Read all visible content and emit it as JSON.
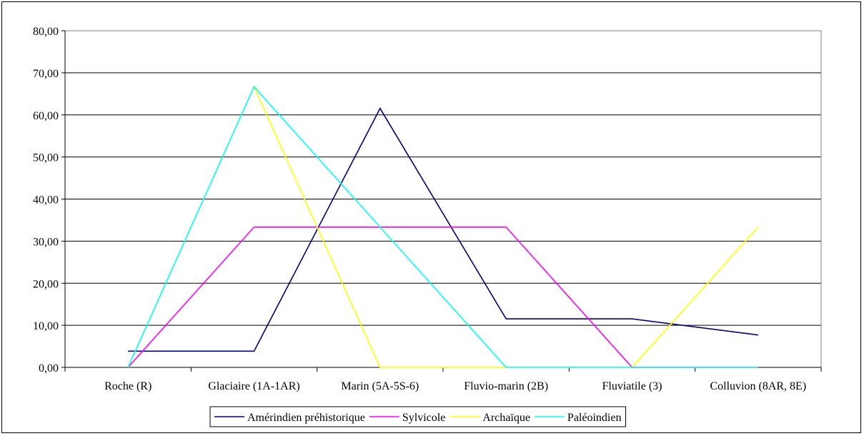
{
  "chart_data": {
    "type": "line",
    "title": "",
    "xlabel": "",
    "ylabel": "",
    "categories": [
      "Roche (R)",
      "Glaciaire (1A-1AR)",
      "Marin (5A-5S-6)",
      "Fluvio-marin (2B)",
      "Fluviatile (3)",
      "Colluvion (8AR, 8E)"
    ],
    "ylim": [
      0,
      80
    ],
    "yticks": [
      "0,00",
      "10,00",
      "20,00",
      "30,00",
      "40,00",
      "50,00",
      "60,00",
      "70,00",
      "80,00"
    ],
    "grid": true,
    "legend_position": "bottom",
    "series": [
      {
        "name": "Amérindien préhistorique",
        "color": "#000080",
        "values": [
          3.85,
          3.85,
          61.54,
          11.54,
          11.54,
          7.69
        ]
      },
      {
        "name": "Sylvicole",
        "color": "#ff00ff",
        "values": [
          0,
          33.33,
          33.33,
          33.33,
          0,
          0
        ]
      },
      {
        "name": "Archaïque",
        "color": "#ffff00",
        "values": [
          0,
          66.67,
          0,
          0,
          0,
          33.33
        ]
      },
      {
        "name": "Paléoindien",
        "color": "#00ffff",
        "values": [
          0,
          66.67,
          33.33,
          0,
          0,
          0
        ]
      }
    ]
  }
}
